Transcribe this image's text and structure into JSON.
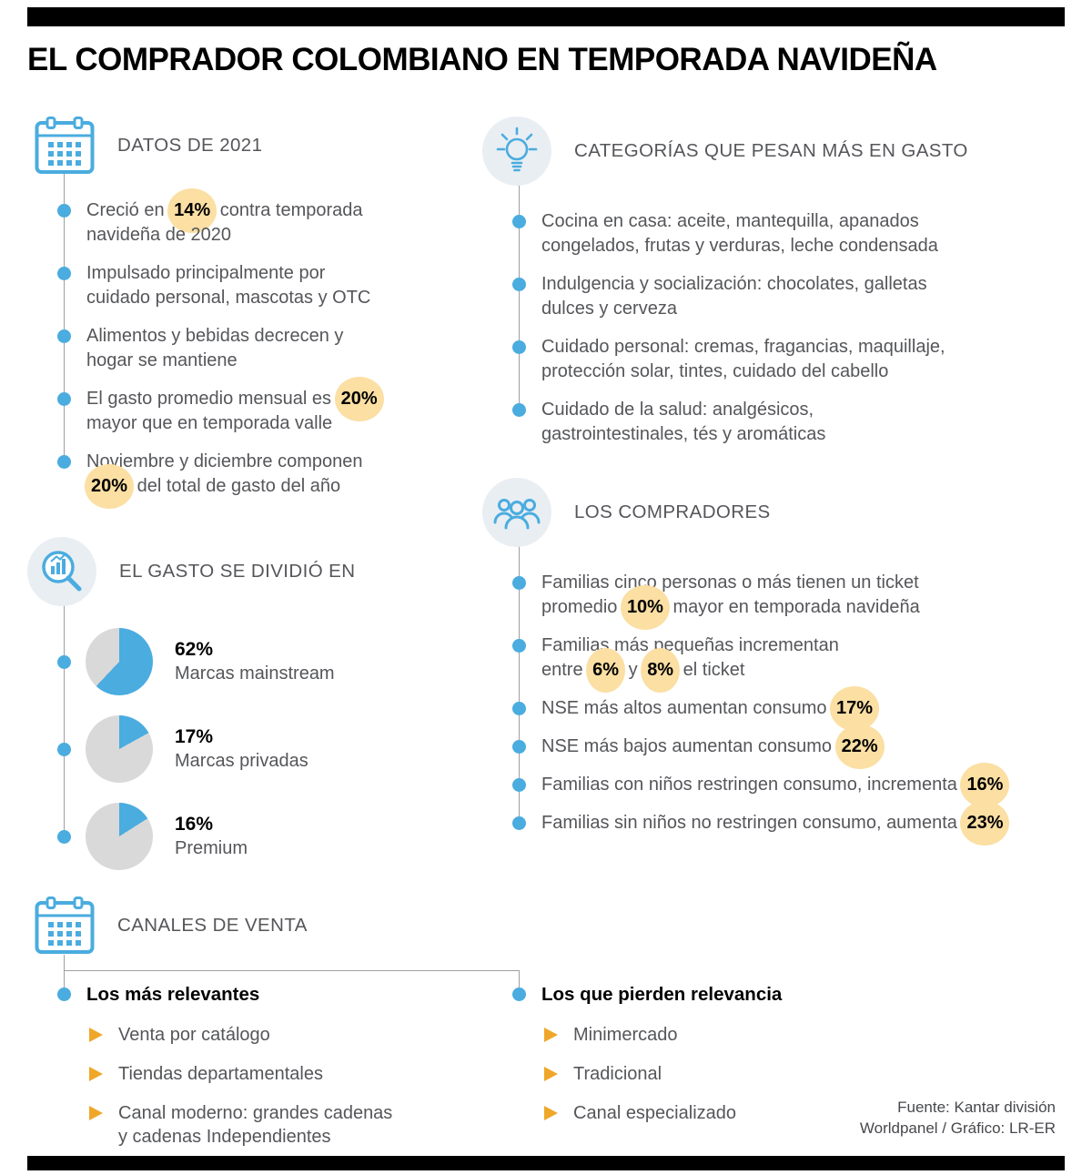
{
  "title": "EL COMPRADOR COLOMBIANO EN TEMPORADA NAVIDEÑA",
  "colors": {
    "accent_blue": "#4AACDF",
    "highlight_yellow": "#FBDFA3",
    "pie_gray": "#D9D9D9",
    "arrow_yellow": "#EFA72A",
    "line_gray": "#9E9FA3",
    "text_gray": "#55565A",
    "icon_circle_bg": "#E9EEF3"
  },
  "sections": {
    "datos2021": {
      "heading": "DATOS DE 2021",
      "items": [
        [
          {
            "t": "Creció en "
          },
          {
            "t": "14%",
            "hl": true
          },
          {
            "t": " contra temporada\nnavideña de 2020"
          }
        ],
        [
          {
            "t": "Impulsado principalmente por\ncuidado personal, mascotas y OTC"
          }
        ],
        [
          {
            "t": "Alimentos y bebidas decrecen y\nhogar se mantiene"
          }
        ],
        [
          {
            "t": "El gasto promedio mensual es "
          },
          {
            "t": "20%",
            "hl": true
          },
          {
            "t": "\nmayor que en temporada valle"
          }
        ],
        [
          {
            "t": "Noviembre y diciembre componen\n"
          },
          {
            "t": "20%",
            "hl": true
          },
          {
            "t": " del total de gasto del año"
          }
        ]
      ]
    },
    "categorias": {
      "heading": "CATEGORÍAS QUE PESAN MÁS EN GASTO",
      "items": [
        [
          {
            "t": "Cocina en casa: aceite, mantequilla, apanados\ncongelados, frutas y verduras, leche condensada"
          }
        ],
        [
          {
            "t": "Indulgencia y socialización: chocolates, galletas\ndulces y cerveza"
          }
        ],
        [
          {
            "t": "Cuidado personal: cremas, fragancias, maquillaje,\nprotección solar, tintes, cuidado del cabello"
          }
        ],
        [
          {
            "t": "Cuidado de la salud: analgésicos,\ngastrointestinales, tés y aromáticas"
          }
        ]
      ]
    },
    "gasto": {
      "heading": "EL GASTO SE DIVIDIÓ EN",
      "chart_data": {
        "type": "pie",
        "unit": "%",
        "slices": [
          {
            "label": "Marcas mainstream",
            "value": 62
          },
          {
            "label": "Marcas privadas",
            "value": 17
          },
          {
            "label": "Premium",
            "value": 16
          }
        ]
      }
    },
    "compradores": {
      "heading": "LOS COMPRADORES",
      "items": [
        [
          {
            "t": "Familias cinco personas o más tienen un ticket\npromedio "
          },
          {
            "t": "10%",
            "hl": true
          },
          {
            "t": " mayor en temporada navideña"
          }
        ],
        [
          {
            "t": "Familias más pequeñas incrementan\nentre "
          },
          {
            "t": "6%",
            "hl": true
          },
          {
            "t": " y "
          },
          {
            "t": "8%",
            "hl": true
          },
          {
            "t": " el ticket"
          }
        ],
        [
          {
            "t": "NSE más altos aumentan consumo "
          },
          {
            "t": "17%",
            "hl": true
          }
        ],
        [
          {
            "t": "NSE más bajos aumentan consumo "
          },
          {
            "t": "22%",
            "hl": true
          }
        ],
        [
          {
            "t": "Familias con niños restringen consumo, incrementa "
          },
          {
            "t": "16%",
            "hl": true
          }
        ],
        [
          {
            "t": "Familias sin niños no restringen consumo, aumenta "
          },
          {
            "t": "23%",
            "hl": true
          }
        ]
      ]
    },
    "canales": {
      "heading": "CANALES DE VENTA",
      "columns": [
        {
          "title": "Los más relevantes",
          "items": [
            "Venta por catálogo",
            "Tiendas departamentales",
            "Canal moderno: grandes cadenas\ny cadenas Independientes"
          ]
        },
        {
          "title": "Los que pierden relevancia",
          "items": [
            "Minimercado",
            "Tradicional",
            "Canal especializado"
          ]
        }
      ]
    }
  },
  "footer": {
    "line1": "Fuente: Kantar división",
    "line2": "Worldpanel / Gráfico: LR-ER"
  }
}
